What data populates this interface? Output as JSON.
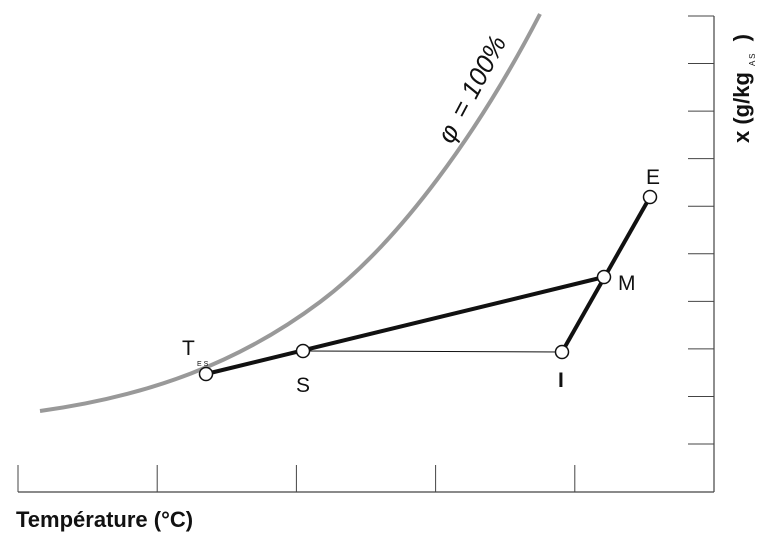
{
  "chart_data": {
    "type": "diagram",
    "xlabel": "Température (°C)",
    "ylabel": {
      "main": "x (g/kg",
      "subscript": "A S",
      "close": ")"
    },
    "curve": {
      "phi_symbol": "φ",
      "phi_value": "= 100%",
      "color": "#999999"
    },
    "points": [
      {
        "id": "T",
        "label": "T",
        "subscript": "E S"
      },
      {
        "id": "S",
        "label": "S"
      },
      {
        "id": "I",
        "label": "I"
      },
      {
        "id": "M",
        "label": "M"
      },
      {
        "id": "E",
        "label": "E"
      }
    ],
    "line_color": "#111111",
    "x_ticks": 6,
    "y_ticks": 10
  }
}
